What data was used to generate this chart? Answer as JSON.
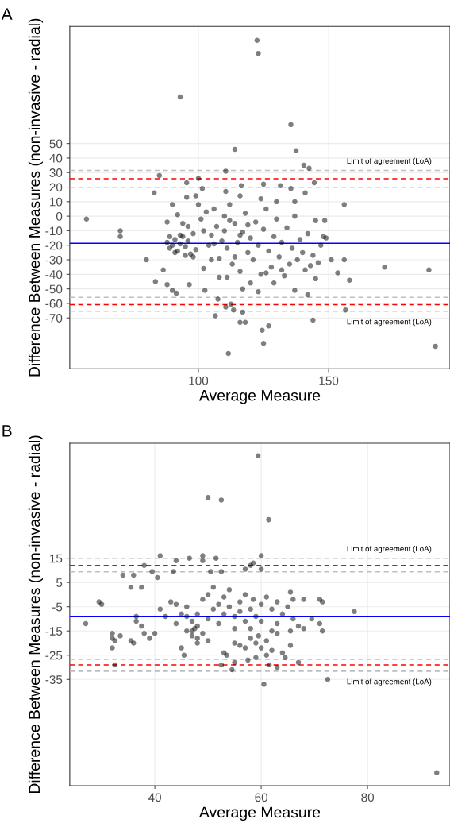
{
  "chart_data": [
    {
      "type": "scatter",
      "title": "A",
      "xlabel": "Average Measure",
      "ylabel": "Difference Between Measures (non-invasive - radial)",
      "xlim": [
        50.6,
        196.6
      ],
      "ylim": [
        -105,
        130.5
      ],
      "xticks": [
        100,
        150
      ],
      "yticks": [
        -70,
        -60,
        -50,
        -40,
        -30,
        -20,
        -10,
        0,
        10,
        20,
        30,
        40,
        50
      ],
      "grid": true,
      "marker": "circle",
      "series": [
        {
          "color": "#000000",
          "x": [
            122.5,
            123,
            93,
            135.5,
            114,
            137.5,
            140.5,
            142.5,
            110.5,
            85,
            100,
            95.5,
            144.5,
            125,
            116.5,
            131.5,
            101.5,
            135.5,
            83,
            110.5,
            141,
            95.5,
            99,
            116,
            124,
            130,
            137,
            156,
            57,
            70,
            70,
            80,
            83.5,
            86.5,
            88,
            90,
            91.5,
            96.5,
            102.5,
            107.5,
            106.5,
            110.5,
            112.5,
            113.5,
            116,
            118,
            117,
            124.5,
            127,
            125,
            111.5,
            144,
            156.5,
            158,
            156,
            153.5,
            151,
            171.5,
            188.5,
            191,
            149,
            148.5,
            88,
            89,
            90,
            91,
            92,
            93,
            94,
            95,
            96,
            97,
            98,
            99,
            89,
            91,
            93,
            95,
            88,
            90,
            92,
            94,
            96,
            98,
            100,
            101,
            102,
            103,
            104,
            105,
            106,
            107,
            108,
            109,
            110,
            111,
            112,
            113,
            114,
            115,
            116,
            117,
            118,
            119,
            120,
            121,
            122,
            123,
            124,
            125,
            126,
            127,
            128,
            129,
            130,
            131,
            132,
            133,
            134,
            135,
            136,
            137,
            138,
            139,
            140,
            141,
            142,
            143,
            144,
            145,
            146,
            147,
            148,
            102,
            105,
            108,
            111,
            114,
            117,
            120,
            123,
            126,
            129,
            132,
            137,
            142,
            145,
            112,
            116,
            119,
            106,
            110
          ],
          "values": [
            121,
            112,
            82,
            63,
            46,
            45,
            35,
            33,
            31,
            28,
            26,
            23,
            23,
            22,
            21,
            21,
            19,
            19,
            16,
            17,
            16,
            13,
            14,
            14,
            12,
            10,
            10,
            8,
            -2,
            -10,
            -14,
            -30,
            -45,
            -37,
            -47,
            -51,
            -53,
            -47,
            -51,
            -57,
            -68.5,
            -62.5,
            -60.5,
            -64.5,
            -73,
            -73,
            -66,
            -78.5,
            -75.5,
            -87.5,
            -94.5,
            -71.5,
            -64.5,
            -44,
            -30,
            -39,
            -30,
            -35,
            -37,
            -89.5,
            -15,
            -3,
            -18,
            -22,
            -20,
            -16,
            -24,
            -19,
            -14,
            -21,
            -17,
            -26,
            -12,
            -23,
            -14,
            -25,
            -13,
            -27,
            -4,
            8,
            1,
            -5,
            -7,
            -28,
            8,
            -2,
            -10,
            3,
            -20,
            -13,
            5,
            -7,
            -29,
            -17,
            0,
            -22,
            8,
            -33,
            -5,
            -18,
            -38,
            -11,
            2,
            -25,
            -15,
            -30,
            -4,
            -20,
            -40,
            -9,
            5,
            -24,
            -35,
            -14,
            -2,
            -28,
            -18,
            -41,
            -8,
            -33,
            -22,
            0,
            -30,
            -16,
            -25,
            -37,
            -12,
            -34,
            -27,
            -3,
            -32,
            -20,
            -14,
            -36,
            -30,
            -42,
            -42,
            -28,
            -50,
            -46,
            -52,
            -39,
            -46,
            -37,
            -51,
            -54,
            -43,
            -3,
            -13,
            -6,
            -19,
            -10
          ]
        }
      ],
      "ref_lines": [
        {
          "axis": "y",
          "value": -18.6,
          "color": "#0000ff",
          "line_style": "solid"
        },
        {
          "axis": "y",
          "value": 25.8,
          "color": "#ff0000",
          "line_style": "dashed"
        },
        {
          "axis": "y",
          "value": -60.8,
          "color": "#ff0000",
          "line_style": "dashed"
        },
        {
          "axis": "y",
          "value": 31.5,
          "color": "#bebebe",
          "line_style": "dashed"
        },
        {
          "axis": "y",
          "value": 19.9,
          "color": "#bebebe",
          "line_style": "dashed"
        },
        {
          "axis": "y",
          "value": -55.8,
          "color": "#bebebe",
          "line_style": "dashed"
        },
        {
          "axis": "y",
          "value": -65.4,
          "color": "#bebebe",
          "line_style": "dashed"
        }
      ],
      "annotations": [
        "Limit of agreement (LoA)",
        "Limit of agreement (LoA)"
      ]
    },
    {
      "type": "scatter",
      "title": "B",
      "xlabel": "Average Measure",
      "ylabel": "Difference Between Measures (non-invasive - radial)",
      "xlim": [
        24,
        95.5
      ],
      "ylim": [
        -78.8,
        62.4
      ],
      "xticks": [
        40,
        60,
        80
      ],
      "yticks": [
        -35,
        -25,
        -15,
        -5,
        5,
        15
      ],
      "grid": true,
      "marker": "circle",
      "series": [
        {
          "color": "#000000",
          "x": [
            59.4,
            50,
            52.5,
            61.4,
            41,
            49,
            60,
            44,
            46.5,
            51.5,
            49,
            38,
            58.5,
            58,
            34,
            36,
            39.5,
            40.5,
            43.5,
            50.5,
            52.5,
            60,
            57,
            35.5,
            37.5,
            29.5,
            30,
            71,
            71.5,
            65.5,
            66,
            68,
            27,
            32,
            32,
            32.5,
            32,
            33.5,
            32.5,
            35.5,
            36,
            36.5,
            36.5,
            37.5,
            38,
            39,
            40,
            45.5,
            52.5,
            54.5,
            55,
            55,
            61.5,
            63,
            67,
            60.5,
            72.5,
            77.5,
            93,
            71.5,
            71,
            69.5,
            68,
            65.5,
            65.5,
            64.5,
            57.5,
            53.5,
            41,
            42,
            43,
            44,
            45,
            46,
            46,
            47,
            47,
            47.5,
            48,
            48,
            49,
            49,
            50,
            50,
            51,
            51,
            52,
            52,
            53,
            53,
            54,
            54,
            55,
            55,
            56,
            56,
            57,
            57,
            58,
            58,
            58.5,
            59,
            59,
            59.5,
            60,
            60,
            61,
            61,
            62,
            62,
            63,
            63,
            64,
            64,
            65,
            66,
            67,
            44,
            45,
            48,
            50,
            53,
            56,
            57,
            59,
            61,
            62,
            63,
            47,
            46,
            48,
            58,
            60
          ],
          "values": [
            57.2,
            40,
            39,
            30.9,
            16,
            16,
            16,
            14,
            15,
            15,
            14,
            12,
            13,
            12,
            8,
            8,
            9.5,
            7,
            9.5,
            9.5,
            9.5,
            10.5,
            10.5,
            3,
            3,
            -3,
            -4,
            -2,
            -3,
            1,
            -2,
            -2,
            -12,
            -16,
            -18,
            -19,
            -22,
            -17,
            -29,
            -19,
            -20,
            -9,
            -11,
            -13,
            -16,
            -18,
            -16,
            -25,
            -29,
            -31,
            -28,
            -20,
            -29,
            -30,
            -28,
            -37,
            -35,
            -7,
            -73.5,
            -15,
            -12,
            -10,
            -14,
            -15,
            -21,
            -26,
            -27,
            -25,
            -6,
            -9,
            -3,
            -12,
            -8,
            -15,
            -5,
            -11,
            -17,
            -14,
            -8,
            -13,
            -2,
            -16,
            0,
            -10,
            -6,
            3,
            -4,
            -12,
            -1,
            -8,
            -5,
            2,
            -9,
            -14,
            -3,
            -7,
            0,
            -11,
            -6,
            -18,
            -2,
            -20,
            -9,
            -17,
            -4,
            -22,
            -1,
            -19,
            -6,
            -15,
            -3,
            -12,
            -8,
            -24,
            -5,
            -10,
            -13,
            -4,
            -22,
            -20,
            -19,
            -24,
            -21,
            -22,
            -26,
            -25,
            -23,
            -16,
            -15,
            -9,
            -18,
            -14,
            -11
          ]
        }
      ],
      "ref_lines": [
        {
          "axis": "y",
          "value": -9.1,
          "color": "#0000ff",
          "line_style": "solid"
        },
        {
          "axis": "y",
          "value": 12,
          "color": "#ff0000",
          "line_style": "dashed"
        },
        {
          "axis": "y",
          "value": -29,
          "color": "#ff0000",
          "line_style": "dashed"
        },
        {
          "axis": "y",
          "value": 15,
          "color": "#bebebe",
          "line_style": "dashed"
        },
        {
          "axis": "y",
          "value": 9.4,
          "color": "#bebebe",
          "line_style": "dashed"
        },
        {
          "axis": "y",
          "value": -26.7,
          "color": "#bebebe",
          "line_style": "dashed"
        },
        {
          "axis": "y",
          "value": -31.6,
          "color": "#bebebe",
          "line_style": "dashed"
        }
      ],
      "annotations": [
        "Limit of agreement (LoA)",
        "Limit of agreement (LoA)"
      ]
    }
  ]
}
